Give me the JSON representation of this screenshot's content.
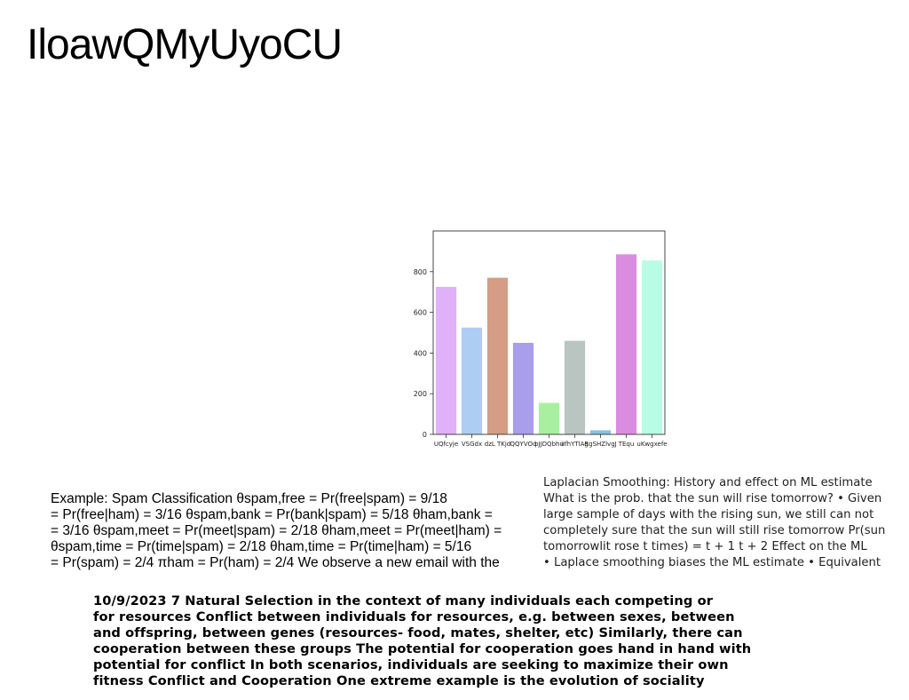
{
  "title": "IloawQMyUyoCU",
  "chart_data": {
    "type": "bar",
    "categories": [
      "UQfcyje",
      "VSGdx",
      "dzL TKjd",
      "QQYVOq",
      "bJJDQbhu",
      "iIfhYTlAg",
      "RgSHZlvgJ",
      "TEqu",
      "uKwgxefe"
    ],
    "values": [
      725,
      525,
      770,
      450,
      155,
      460,
      20,
      885,
      855
    ],
    "colors": [
      "#e0b0f8",
      "#aecdf2",
      "#d59d86",
      "#a99eeb",
      "#a8f0a0",
      "#b8c5c0",
      "#86c3df",
      "#da8ce0",
      "#b8fce6"
    ],
    "ylim": [
      0,
      1000
    ],
    "yticks": [
      0,
      200,
      400,
      600,
      800
    ],
    "title": "",
    "xlabel": "",
    "ylabel": ""
  },
  "block_left": [
    "Example: Spam Classification θspam,free = Pr(free|spam) = 9/18",
    "= Pr(free|ham) = 3/16 θspam,bank = Pr(bank|spam) = 5/18 θham,bank =",
    "= 3/16 θspam,meet = Pr(meet|spam) = 2/18 θham,meet = Pr(meet|ham) =",
    "θspam,time = Pr(time|spam) = 2/18 θham,time = Pr(time|ham) = 5/16",
    "= Pr(spam) = 2/4 πham = Pr(ham) = 2/4 We observe a new email with the"
  ],
  "block_right": [
    "Laplacian Smoothing: History and effect on ML estimate",
    "What is the prob. that the sun will rise tomorrow? • Given",
    "large sample of days with the rising sun, we still can not",
    "completely sure that the sun will still rise tomorrow Pr(sun",
    "tomorrowlit rose t times) = t + 1 t + 2 Effect on the ML",
    "• Laplace smoothing biases the ML estimate • Equivalent"
  ],
  "block_bottom": [
    "10/9/2023 7 Natural Selection in the context of many individuals each competing or",
    "for resources Conflict between individuals for resources, e.g. between sexes, between",
    "and offspring, between genes (resources- food, mates, shelter, etc) Similarly, there can",
    "cooperation between these groups The potential for cooperation goes hand in hand with",
    "potential for conflict In both scenarios, individuals are seeking to maximize their own",
    "fitness Conflict and Cooperation One extreme example is the evolution of sociality"
  ]
}
